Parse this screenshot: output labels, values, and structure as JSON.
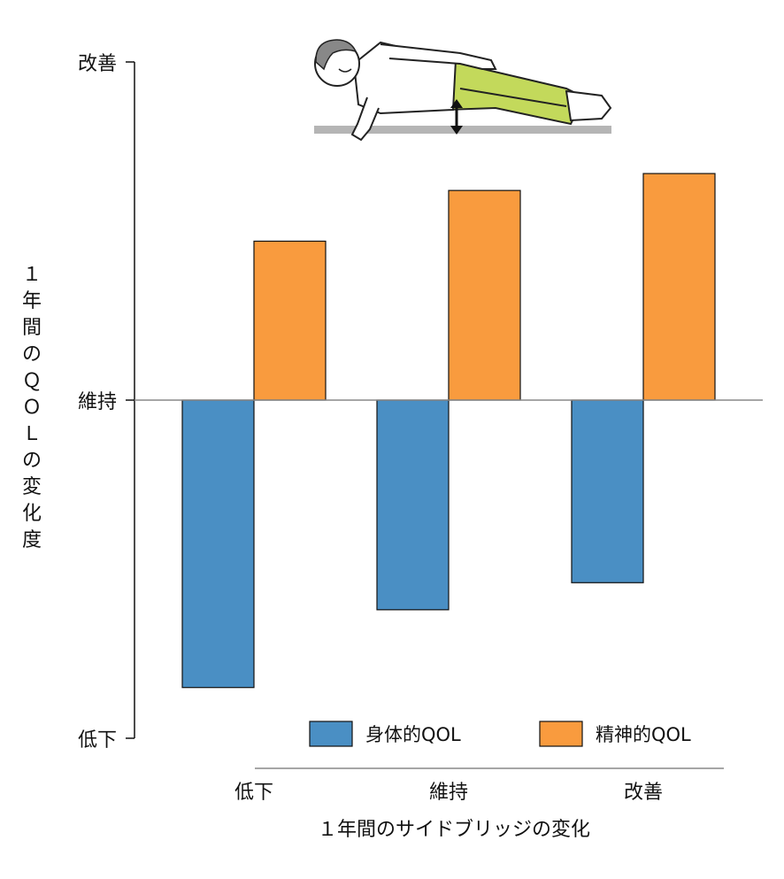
{
  "chart_data": {
    "type": "bar",
    "categories": [
      "低下",
      "維持",
      "改善"
    ],
    "series": [
      {
        "name": "身体的QOL",
        "values": [
          -0.85,
          -0.62,
          -0.54
        ],
        "color": "#4a8fc4"
      },
      {
        "name": "精神的QOL",
        "values": [
          0.47,
          0.62,
          0.67
        ],
        "color": "#f99b3e"
      }
    ],
    "ylim": [
      -1,
      1
    ],
    "ytick_labels": [
      "低下",
      "維持",
      "改善"
    ],
    "xlabel": "１年間のサイドブリッジの変化",
    "ylabel": "１年間のＱＯＬの変化度",
    "legend_position": "bottom-right",
    "illustration": "side-bridge-exercise"
  }
}
